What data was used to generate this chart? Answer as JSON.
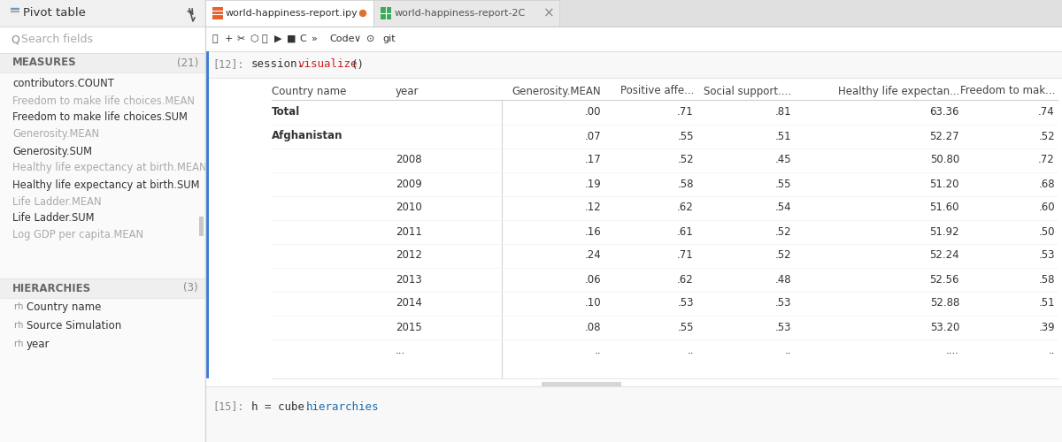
{
  "bg_color": "#ffffff",
  "left_panel_bg": "#fafafa",
  "left_panel_border": "#e0e0e0",
  "header_bg": "#f0f0f0",
  "search_bg": "#ffffff",
  "tab_bar_bg": "#e8e8e8",
  "tab1_bg": "#ffffff",
  "tab2_bg": "#ebebeb",
  "toolbar_bg": "#ffffff",
  "cell_bg": "#f8f8f8",
  "table_bg": "#ffffff",
  "blue_bar": "#3a7bd5",
  "pivot_title": "Pivot table",
  "search_text": "Search fields",
  "measures_label": "MEASURES",
  "measures_count": "(21)",
  "hierarchies_label": "HIERARCHIES",
  "hierarchies_count": "(3)",
  "measures_items": [
    {
      "text": "contributors.COUNT",
      "gray": false
    },
    {
      "text": "Freedom to make life choices.MEAN",
      "gray": true
    },
    {
      "text": "Freedom to make life choices.SUM",
      "gray": false
    },
    {
      "text": "Generosity.MEAN",
      "gray": true
    },
    {
      "text": "Generosity.SUM",
      "gray": false
    },
    {
      "text": "Healthy life expectancy at birth.MEAN",
      "gray": true
    },
    {
      "text": "Healthy life expectancy at birth.SUM",
      "gray": false
    },
    {
      "text": "Life Ladder.MEAN",
      "gray": true
    },
    {
      "text": "Life Ladder.SUM",
      "gray": false
    },
    {
      "text": "Log GDP per capita.MEAN",
      "gray": true
    }
  ],
  "hierarchies_items": [
    "Country name",
    "Source Simulation",
    "year"
  ],
  "tab1_name": "world-happiness-report.ipy",
  "tab2_name": "world-happiness-report-2C",
  "table_columns": [
    "Country name",
    "year",
    "Generosity.MEAN",
    "Positive affe...",
    "Social support....",
    "Healthy life expectan...",
    "Freedom to mak..."
  ],
  "table_data": [
    {
      "country": "Total",
      "year": "",
      "gen": ".00",
      "pos": ".71",
      "soc": ".81",
      "hle": "63.36",
      "free": ".74",
      "bold": true
    },
    {
      "country": "Afghanistan",
      "year": "",
      "gen": ".07",
      "pos": ".55",
      "soc": ".51",
      "hle": "52.27",
      "free": ".52",
      "bold": true
    },
    {
      "country": "",
      "year": "2008",
      "gen": ".17",
      "pos": ".52",
      "soc": ".45",
      "hle": "50.80",
      "free": ".72",
      "bold": false
    },
    {
      "country": "",
      "year": "2009",
      "gen": ".19",
      "pos": ".58",
      "soc": ".55",
      "hle": "51.20",
      "free": ".68",
      "bold": false
    },
    {
      "country": "",
      "year": "2010",
      "gen": ".12",
      "pos": ".62",
      "soc": ".54",
      "hle": "51.60",
      "free": ".60",
      "bold": false
    },
    {
      "country": "",
      "year": "2011",
      "gen": ".16",
      "pos": ".61",
      "soc": ".52",
      "hle": "51.92",
      "free": ".50",
      "bold": false
    },
    {
      "country": "",
      "year": "2012",
      "gen": ".24",
      "pos": ".71",
      "soc": ".52",
      "hle": "52.24",
      "free": ".53",
      "bold": false
    },
    {
      "country": "",
      "year": "2013",
      "gen": ".06",
      "pos": ".62",
      "soc": ".48",
      "hle": "52.56",
      "free": ".58",
      "bold": false
    },
    {
      "country": "",
      "year": "2014",
      "gen": ".10",
      "pos": ".53",
      "soc": ".53",
      "hle": "52.88",
      "free": ".51",
      "bold": false
    },
    {
      "country": "",
      "year": "2015",
      "gen": ".08",
      "pos": ".55",
      "soc": ".53",
      "hle": "53.20",
      "free": ".39",
      "bold": false
    },
    {
      "country": "",
      "year": "...",
      "gen": "..",
      "pos": "..",
      "soc": "..",
      "hle": "....",
      "free": "..",
      "bold": false
    }
  ],
  "visualize_color": "#cc2222",
  "hierarchies_color": "#1a6faf",
  "code_color": "#333333",
  "number_color": "#555555"
}
